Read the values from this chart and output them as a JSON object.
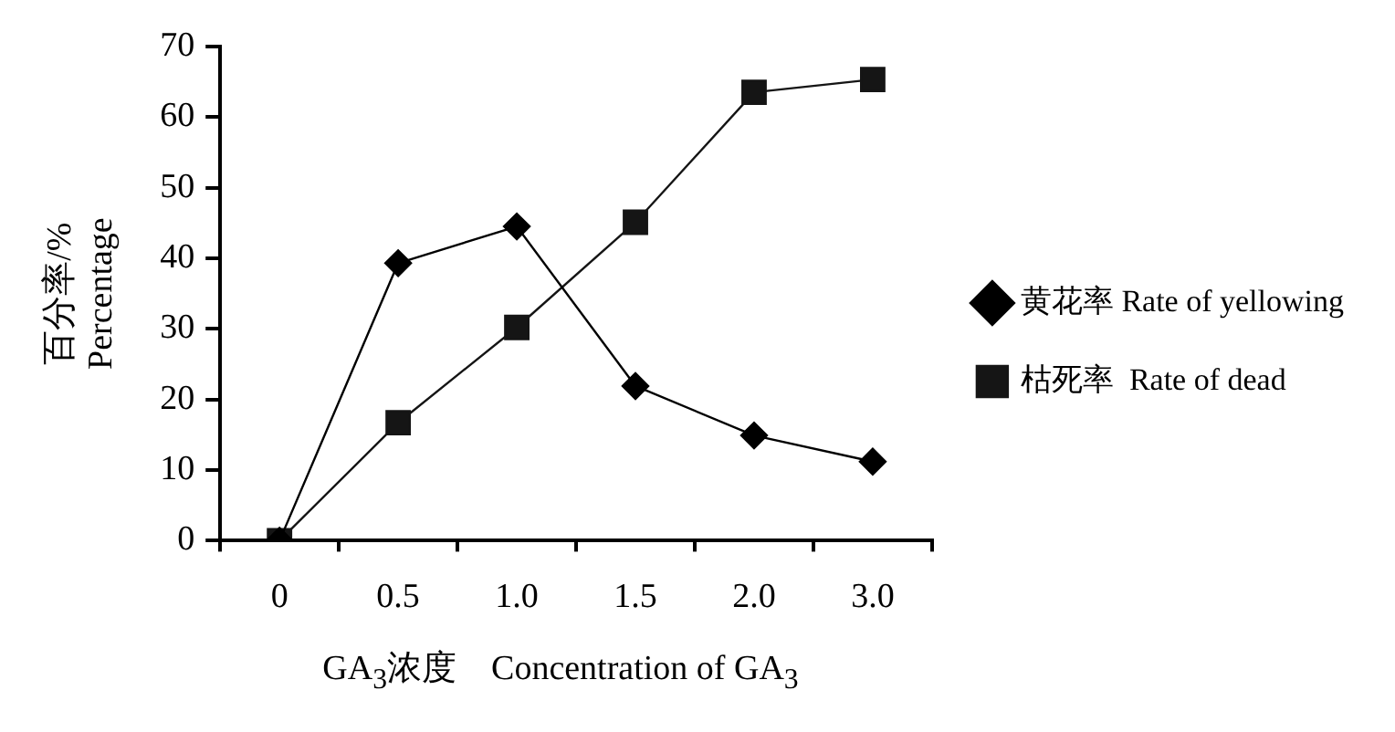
{
  "chart_data": {
    "type": "line",
    "xlabel": "GA$_{3}$浓度    Concentration of GA$_{3}$",
    "ylabel": "百分率/%\nPercentage",
    "categories": [
      "0",
      "0.5",
      "1.0",
      "1.5",
      "2.0",
      "3.0"
    ],
    "series": [
      {
        "name": "黄花率 Rate of yellowing",
        "color": "#000000",
        "marker": "diamond",
        "values": [
          0,
          39.3,
          44.5,
          21.9,
          14.9,
          11.2
        ]
      },
      {
        "name": "枯死率  Rate of dead",
        "color": "#151515",
        "marker": "square",
        "values": [
          0,
          16.7,
          30.2,
          45.1,
          63.5,
          65.3
        ]
      }
    ],
    "ylim": [
      0,
      70
    ],
    "yticks": [
      0,
      10,
      20,
      30,
      40,
      50,
      60,
      70
    ],
    "grid": false,
    "legend": "right",
    "line_style": "solid"
  }
}
